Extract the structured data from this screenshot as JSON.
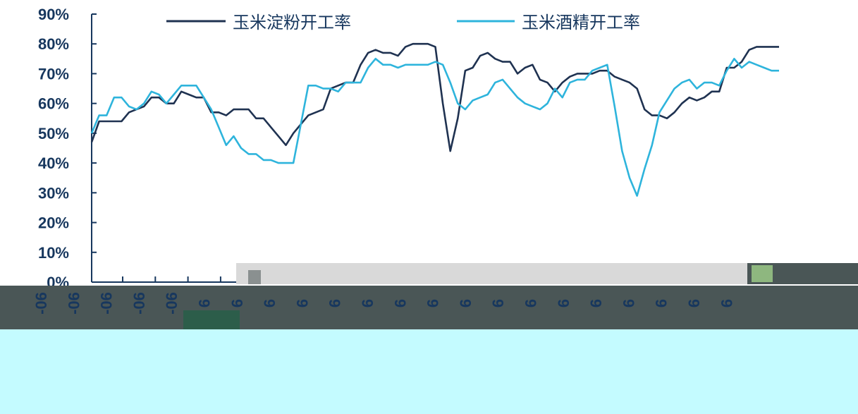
{
  "chart_data": {
    "type": "line",
    "title": "",
    "xlabel": "",
    "ylabel": "",
    "ylim": [
      0,
      90
    ],
    "y_ticks": [
      "90%",
      "80%",
      "70%",
      "60%",
      "50%",
      "40%",
      "30%",
      "20%",
      "10%",
      "0%"
    ],
    "x_tick_labels": [
      "-06",
      "-06",
      "-06",
      "-06",
      "-06",
      "6",
      "6",
      "6",
      "6",
      "6",
      "6",
      "6",
      "6",
      "6",
      "6",
      "6",
      "6",
      "6",
      "6",
      "6",
      "6",
      "6"
    ],
    "legend_position": "top",
    "grid": false,
    "colors": {
      "series1": "#1f3251",
      "series2": "#2eb4dc",
      "axis": "#17375e",
      "band_dark": "#4a5656",
      "band_light": "#c4fbff",
      "band_gray": "#d9d9d9"
    },
    "series": [
      {
        "name": "玉米淀粉开工率",
        "values": [
          47,
          54,
          54,
          54,
          54,
          57,
          58,
          59,
          62,
          62,
          60,
          60,
          64,
          63,
          62,
          62,
          57,
          57,
          56,
          58,
          58,
          58,
          55,
          55,
          52,
          49,
          46,
          50,
          53,
          56,
          57,
          58,
          65,
          66,
          67,
          67,
          73,
          77,
          78,
          77,
          77,
          76,
          79,
          80,
          80,
          80,
          79,
          60,
          44,
          55,
          71,
          72,
          76,
          77,
          75,
          74,
          74,
          70,
          72,
          73,
          68,
          67,
          64,
          67,
          69,
          70,
          70,
          70,
          71,
          71,
          69,
          68,
          67,
          65,
          58,
          56,
          56,
          55,
          57,
          60,
          62,
          61,
          62,
          64,
          64,
          72,
          72,
          74,
          78,
          79,
          79,
          79,
          79
        ]
      },
      {
        "name": "玉米酒精开工率",
        "values": [
          50,
          56,
          56,
          62,
          62,
          59,
          58,
          60,
          64,
          63,
          60,
          63,
          66,
          66,
          66,
          62,
          58,
          52,
          46,
          49,
          45,
          43,
          43,
          41,
          41,
          40,
          40,
          40,
          53,
          66,
          66,
          65,
          65,
          64,
          67,
          67,
          67,
          72,
          75,
          73,
          73,
          72,
          73,
          73,
          73,
          73,
          74,
          73,
          67,
          60,
          58,
          61,
          62,
          63,
          67,
          68,
          65,
          62,
          60,
          59,
          58,
          60,
          65,
          62,
          67,
          68,
          68,
          71,
          72,
          73,
          59,
          44,
          35,
          29,
          38,
          46,
          57,
          61,
          65,
          67,
          68,
          65,
          67,
          67,
          66,
          71,
          75,
          72,
          74,
          73,
          72,
          71,
          71
        ]
      }
    ]
  }
}
